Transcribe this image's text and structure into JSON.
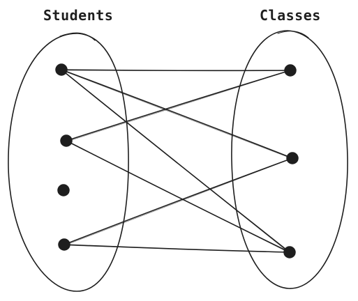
{
  "diagram": {
    "left_set": {
      "title": "Students"
    },
    "right_set": {
      "title": "Classes"
    },
    "students": [
      {
        "id": "s1"
      },
      {
        "id": "s2"
      },
      {
        "id": "s3"
      },
      {
        "id": "s4"
      }
    ],
    "classes": [
      {
        "id": "c1"
      },
      {
        "id": "c2"
      },
      {
        "id": "c3"
      }
    ],
    "edges": [
      {
        "from": "s1",
        "to": "c1"
      },
      {
        "from": "s1",
        "to": "c2"
      },
      {
        "from": "s1",
        "to": "c3"
      },
      {
        "from": "s2",
        "to": "c1"
      },
      {
        "from": "s2",
        "to": "c3"
      },
      {
        "from": "s4",
        "to": "c2"
      },
      {
        "from": "s4",
        "to": "c3"
      }
    ],
    "colors": {
      "ink": "#1e1e1e",
      "background": "#ffffff"
    }
  }
}
